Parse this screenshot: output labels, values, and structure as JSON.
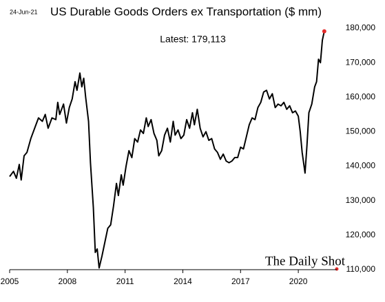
{
  "chart_data": {
    "type": "line",
    "date": "24-Jun-21",
    "title": "US Durable Goods Orders ex Transportation ($ mm)",
    "annotation": "Latest:  179,113",
    "source": "The Daily Shot",
    "color": "#000000",
    "last_point_color": "#e32b2b",
    "x": [
      2005.0,
      2005.2,
      2005.35,
      2005.5,
      2005.6,
      2005.75,
      2005.9,
      2006.1,
      2006.3,
      2006.5,
      2006.7,
      2006.85,
      2007.0,
      2007.2,
      2007.4,
      2007.5,
      2007.6,
      2007.8,
      2007.95,
      2008.1,
      2008.25,
      2008.4,
      2008.5,
      2008.65,
      2008.75,
      2008.85,
      2008.95,
      2009.1,
      2009.2,
      2009.35,
      2009.45,
      2009.55,
      2009.65,
      2009.8,
      2009.95,
      2010.1,
      2010.25,
      2010.4,
      2010.55,
      2010.65,
      2010.8,
      2010.9,
      2011.05,
      2011.2,
      2011.35,
      2011.5,
      2011.65,
      2011.8,
      2011.95,
      2012.1,
      2012.2,
      2012.35,
      2012.5,
      2012.65,
      2012.75,
      2012.9,
      2013.05,
      2013.2,
      2013.35,
      2013.5,
      2013.6,
      2013.75,
      2013.9,
      2014.05,
      2014.2,
      2014.35,
      2014.5,
      2014.6,
      2014.75,
      2014.9,
      2015.05,
      2015.2,
      2015.35,
      2015.5,
      2015.65,
      2015.8,
      2015.95,
      2016.1,
      2016.25,
      2016.4,
      2016.55,
      2016.7,
      2016.85,
      2017.0,
      2017.15,
      2017.3,
      2017.45,
      2017.6,
      2017.75,
      2017.9,
      2018.05,
      2018.2,
      2018.35,
      2018.5,
      2018.65,
      2018.8,
      2018.95,
      2019.1,
      2019.25,
      2019.4,
      2019.55,
      2019.7,
      2019.85,
      2020.0,
      2020.1,
      2020.2,
      2020.35,
      2020.45,
      2020.55,
      2020.7,
      2020.85,
      2020.95,
      2021.05,
      2021.15,
      2021.25,
      2021.35
    ],
    "series": [
      {
        "name": "US Durable Goods Orders ex Transportation",
        "values": [
          137000,
          138500,
          136500,
          140500,
          136000,
          143000,
          144000,
          148000,
          151000,
          154000,
          153000,
          155000,
          151000,
          154000,
          153500,
          158500,
          155000,
          158000,
          152500,
          157000,
          159500,
          164500,
          162000,
          167000,
          163000,
          165500,
          160000,
          153000,
          141000,
          128000,
          115000,
          116000,
          110500,
          114000,
          118000,
          122000,
          123000,
          128500,
          135000,
          131500,
          137500,
          134500,
          140000,
          144500,
          142500,
          148000,
          147000,
          150500,
          149500,
          154000,
          151500,
          153500,
          149500,
          147500,
          143000,
          144500,
          149000,
          151000,
          147000,
          153000,
          149000,
          150500,
          148000,
          149000,
          153500,
          151000,
          155500,
          152000,
          156500,
          151000,
          148500,
          150000,
          147500,
          148000,
          145000,
          144000,
          142000,
          143500,
          141500,
          141000,
          141500,
          142500,
          142500,
          145500,
          145000,
          148500,
          152000,
          154000,
          153500,
          157000,
          158500,
          161500,
          162000,
          159500,
          161000,
          157000,
          158000,
          157500,
          158500,
          156500,
          157500,
          155500,
          156000,
          154500,
          150000,
          144000,
          138000,
          146000,
          155500,
          158000,
          163000,
          164500,
          171000,
          170000,
          176500,
          179113
        ]
      }
    ],
    "xlim": [
      2005,
      2022
    ],
    "xticks": [
      2005,
      2008,
      2011,
      2014,
      2017,
      2020
    ],
    "ylim": [
      110000,
      180000
    ],
    "yticks": [
      {
        "value": 110000,
        "label": "110,000"
      },
      {
        "value": 120000,
        "label": "120,000"
      },
      {
        "value": 130000,
        "label": "130,000"
      },
      {
        "value": 140000,
        "label": "140,000"
      },
      {
        "value": 150000,
        "label": "150,000"
      },
      {
        "value": 160000,
        "label": "160,000"
      },
      {
        "value": 170000,
        "label": "170,000"
      },
      {
        "value": 180000,
        "label": "180,000"
      }
    ]
  }
}
